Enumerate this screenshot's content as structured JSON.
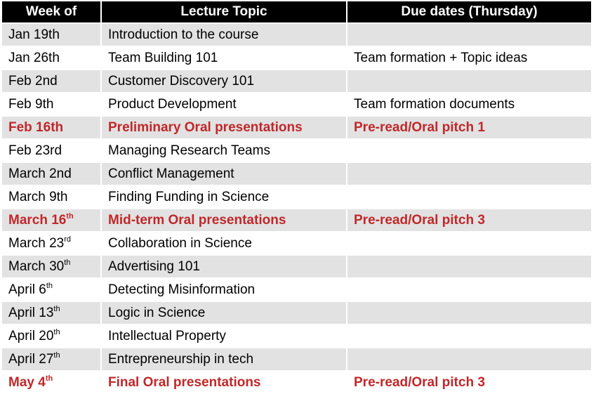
{
  "headers": [
    "Week of",
    "Lecture Topic",
    "Due dates (Thursday)"
  ],
  "accent_color": "#c0282a",
  "rows": [
    {
      "week": "Jan 19th",
      "sup": "",
      "topic": "Introduction to the course",
      "due": "",
      "highlight": false
    },
    {
      "week": "Jan 26th",
      "sup": "",
      "topic": "Team Building 101",
      "due": "Team formation + Topic ideas",
      "highlight": false
    },
    {
      "week": "Feb 2nd",
      "sup": "",
      "topic": "Customer Discovery 101",
      "due": "",
      "highlight": false
    },
    {
      "week": "Feb 9th",
      "sup": "",
      "topic": "Product Development",
      "due": "Team formation documents",
      "highlight": false
    },
    {
      "week": "Feb 16th",
      "sup": "",
      "topic": "Preliminary Oral presentations",
      "due": "Pre-read/Oral pitch 1",
      "highlight": true
    },
    {
      "week": "Feb 23rd",
      "sup": "",
      "topic": "Managing Research Teams",
      "due": "",
      "highlight": false
    },
    {
      "week": "March 2nd",
      "sup": "",
      "topic": "Conflict Management",
      "due": "",
      "highlight": false
    },
    {
      "week": "March 9th",
      "sup": "",
      "topic": "Finding Funding in Science",
      "due": "",
      "highlight": false
    },
    {
      "week": "March 16",
      "sup": "th",
      "topic": "Mid-term Oral presentations",
      "due": "Pre-read/Oral pitch 3",
      "highlight": true
    },
    {
      "week": "March 23",
      "sup": "rd",
      "topic": "Collaboration in Science",
      "due": "",
      "highlight": false
    },
    {
      "week": "March 30",
      "sup": "th",
      "topic": "Advertising 101",
      "due": "",
      "highlight": false
    },
    {
      "week": "April 6",
      "sup": "th",
      "topic": "Detecting Misinformation",
      "due": "",
      "highlight": false
    },
    {
      "week": "April 13",
      "sup": "th",
      "topic": "Logic in Science",
      "due": "",
      "highlight": false
    },
    {
      "week": "April 20",
      "sup": "th",
      "topic": "Intellectual Property",
      "due": "",
      "highlight": false
    },
    {
      "week": "April 27",
      "sup": "th",
      "topic": "Entrepreneurship in tech",
      "due": "",
      "highlight": false
    },
    {
      "week": "May 4",
      "sup": "th",
      "topic": "Final Oral presentations",
      "due": "Pre-read/Oral pitch 3",
      "highlight": true
    }
  ]
}
